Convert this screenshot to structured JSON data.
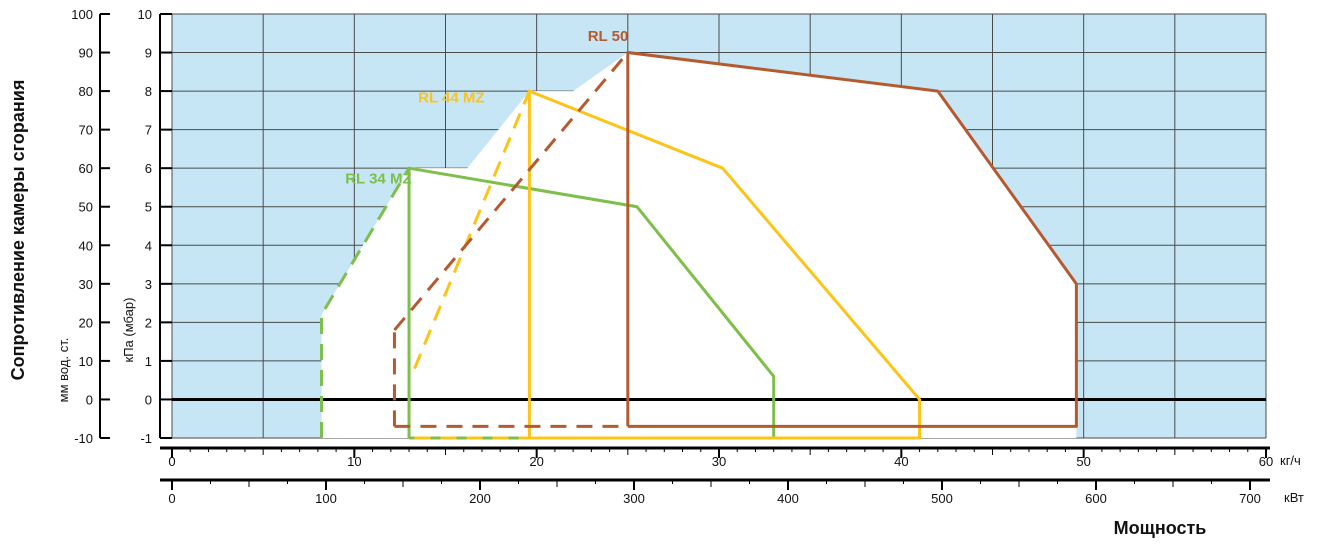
{
  "chart_data": {
    "type": "line",
    "title": "",
    "ylabel_outer": "Сопротивление камеры сгорания",
    "ylabel_mm": "мм вод. ст.",
    "ylabel_kpa": "кПа (мбар)",
    "xlabel": "Мощность",
    "x_unit_top": "кг/ч",
    "x_unit_bottom": "кВт",
    "grid": true,
    "plot_background": "#c7e6f5",
    "x_kgh_ticks": [
      "0",
      "10",
      "20",
      "30",
      "40",
      "50",
      "60"
    ],
    "x_kw_ticks": [
      "0",
      "100",
      "200",
      "300",
      "400",
      "500",
      "600",
      "700"
    ],
    "y_mbar_ticks": [
      "-1",
      "0",
      "1",
      "2",
      "3",
      "4",
      "5",
      "6",
      "7",
      "8",
      "9",
      "10"
    ],
    "y_mm_ticks": [
      "-10",
      "0",
      "10",
      "20",
      "30",
      "40",
      "50",
      "60",
      "70",
      "80",
      "90",
      "100"
    ],
    "xlim_kgh": [
      0,
      60
    ],
    "ylim_mbar": [
      -1,
      10
    ],
    "series": [
      {
        "name": "RL 34 MZ",
        "color": "#7dbf48",
        "solid": [
          [
            13,
            -1
          ],
          [
            13,
            6
          ],
          [
            25.5,
            5
          ],
          [
            33,
            0.6
          ],
          [
            33,
            -1
          ],
          [
            13,
            -1
          ]
        ],
        "dashed": [
          [
            8.2,
            -1
          ],
          [
            8.2,
            2.2
          ],
          [
            13,
            6
          ]
        ],
        "label_pos": [
          9.5,
          5.6
        ]
      },
      {
        "name": "RL 44 MZ",
        "color": "#fcc418",
        "solid": [
          [
            19.6,
            -1
          ],
          [
            19.6,
            8
          ],
          [
            30.2,
            6
          ],
          [
            41,
            0
          ],
          [
            41,
            -1
          ],
          [
            19.6,
            -1
          ]
        ],
        "dashed": [
          [
            13.3,
            0.8
          ],
          [
            19.6,
            8
          ]
        ],
        "dashed2": [
          [
            13.3,
            -1
          ],
          [
            19.6,
            -1
          ]
        ],
        "label_pos": [
          13.5,
          7.7
        ]
      },
      {
        "name": "RL 50",
        "color": "#b55a2e",
        "solid": [
          [
            25,
            -0.7
          ],
          [
            25,
            9
          ],
          [
            42,
            8
          ],
          [
            49.6,
            3
          ],
          [
            49.6,
            -0.7
          ],
          [
            25,
            -0.7
          ]
        ],
        "dashed": [
          [
            12.2,
            1.8
          ],
          [
            25,
            9
          ]
        ],
        "dashed2": [
          [
            12.2,
            -0.7
          ],
          [
            12.2,
            1.8
          ]
        ],
        "dashed3": [
          [
            12.2,
            -0.7
          ],
          [
            25,
            -0.7
          ]
        ],
        "label_pos": [
          22.8,
          9.3
        ]
      }
    ]
  }
}
